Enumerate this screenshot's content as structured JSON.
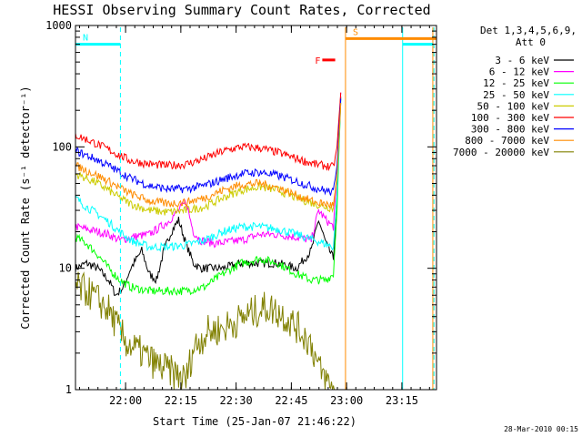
{
  "chart_data": {
    "type": "line",
    "title": "HESSI Observing Summary Count Rates, Corrected",
    "xlabel": "Start Time (25-Jan-07 21:46:22)",
    "ylabel": "Corrected Count Rate (s⁻¹ detector⁻¹)",
    "x_unit": "minutes from 21:46:22",
    "xlim": [
      0,
      98
    ],
    "ylim": [
      1,
      1000
    ],
    "y_scale": "log",
    "grid": false,
    "x_ticks": [
      {
        "x": 13.6,
        "label": "22:00"
      },
      {
        "x": 28.6,
        "label": "22:15"
      },
      {
        "x": 43.6,
        "label": "22:30"
      },
      {
        "x": 58.6,
        "label": "22:45"
      },
      {
        "x": 73.6,
        "label": "23:00"
      },
      {
        "x": 88.6,
        "label": "23:15"
      }
    ],
    "y_ticks": [
      {
        "y": 1,
        "label": "1"
      },
      {
        "y": 10,
        "label": "10"
      },
      {
        "y": 100,
        "label": "100"
      },
      {
        "y": 1000,
        "label": "1000"
      }
    ],
    "legend": {
      "placement": "right",
      "header": [
        "Det 1,3,4,5,6,9,",
        "Att 0"
      ]
    },
    "series": [
      {
        "name": "3 - 6 keV",
        "color": "#000000",
        "x": [
          0,
          3,
          6,
          9,
          11,
          13,
          15,
          18,
          20,
          22,
          24,
          26,
          28,
          30,
          32,
          34,
          36,
          40,
          45,
          50,
          55,
          60,
          64,
          66,
          68,
          70,
          71,
          72
        ],
        "y": [
          10,
          11,
          10,
          8,
          6,
          7,
          10,
          14,
          9,
          8,
          14,
          20,
          25,
          16,
          11,
          10,
          10,
          10,
          11,
          11,
          11,
          10,
          14,
          25,
          16,
          12,
          40,
          260
        ]
      },
      {
        "name": "6 - 12 keV",
        "color": "#ff00ff",
        "x": [
          0,
          3,
          6,
          9,
          12,
          15,
          20,
          25,
          28,
          30,
          32,
          34,
          38,
          45,
          50,
          55,
          60,
          64,
          66,
          68,
          70,
          71,
          72
        ],
        "y": [
          22,
          21,
          20,
          19,
          17,
          18,
          19,
          24,
          30,
          35,
          20,
          17,
          16,
          17,
          19,
          19,
          18,
          17,
          30,
          25,
          22,
          60,
          280
        ]
      },
      {
        "name": "12 - 25 keV",
        "color": "#00ff00",
        "x": [
          0,
          3,
          6,
          9,
          12,
          15,
          20,
          25,
          30,
          35,
          40,
          45,
          50,
          55,
          60,
          64,
          66,
          68,
          70,
          71,
          72
        ],
        "y": [
          18,
          16,
          13,
          10,
          8,
          7,
          6.5,
          6.5,
          6.5,
          7,
          9,
          11,
          12,
          11,
          9,
          8,
          8,
          8,
          9,
          30,
          250
        ]
      },
      {
        "name": "25 - 50 keV",
        "color": "#00ffff",
        "x": [
          0,
          3,
          6,
          9,
          12,
          15,
          20,
          25,
          30,
          35,
          40,
          45,
          50,
          55,
          60,
          65,
          70,
          71,
          72
        ],
        "y": [
          38,
          32,
          28,
          24,
          20,
          17,
          15,
          15,
          15.5,
          17,
          20,
          22,
          22,
          21,
          19,
          17,
          15,
          40,
          240
        ]
      },
      {
        "name": "50 - 100 keV",
        "color": "#cccc00",
        "x": [
          0,
          3,
          6,
          9,
          12,
          15,
          20,
          25,
          30,
          35,
          40,
          45,
          50,
          55,
          60,
          65,
          70,
          71,
          72
        ],
        "y": [
          60,
          55,
          50,
          44,
          38,
          34,
          30,
          29,
          30,
          32,
          38,
          44,
          47,
          44,
          38,
          34,
          31,
          60,
          230
        ]
      },
      {
        "name": "100 - 300 keV",
        "color": "#ff0000",
        "x": [
          0,
          3,
          6,
          9,
          12,
          15,
          20,
          25,
          30,
          35,
          40,
          45,
          50,
          55,
          60,
          65,
          70,
          71,
          72
        ],
        "y": [
          125,
          115,
          105,
          95,
          85,
          77,
          72,
          70,
          72,
          80,
          92,
          100,
          98,
          90,
          80,
          72,
          68,
          100,
          280
        ]
      },
      {
        "name": "300 - 800 keV",
        "color": "#0000ff",
        "x": [
          0,
          3,
          6,
          9,
          12,
          15,
          20,
          25,
          30,
          35,
          40,
          45,
          50,
          55,
          60,
          65,
          70,
          71,
          72
        ],
        "y": [
          93,
          85,
          78,
          70,
          62,
          55,
          48,
          45,
          45,
          48,
          54,
          60,
          62,
          58,
          52,
          46,
          42,
          70,
          250
        ]
      },
      {
        "name": "800 - 7000 keV",
        "color": "#ff8c00",
        "x": [
          0,
          3,
          6,
          9,
          12,
          15,
          20,
          25,
          30,
          35,
          40,
          45,
          50,
          55,
          60,
          65,
          70,
          71,
          72
        ],
        "y": [
          70,
          64,
          58,
          52,
          46,
          41,
          36,
          34,
          35,
          38,
          44,
          49,
          50,
          46,
          40,
          35,
          33,
          55,
          230
        ]
      },
      {
        "name": "7000 - 20000 keV",
        "color": "#808000",
        "x": [
          0,
          3,
          6,
          9,
          10,
          12,
          14,
          18,
          22,
          26,
          30,
          32,
          34,
          36,
          40,
          44,
          48,
          52,
          56,
          60,
          64,
          66,
          68,
          70,
          72
        ],
        "y": [
          7,
          6.5,
          5.5,
          4.5,
          4,
          3,
          2.4,
          2,
          1.6,
          1.4,
          1.2,
          2.2,
          2.6,
          3,
          3.2,
          3.7,
          4.3,
          4.8,
          4.2,
          3.3,
          2.4,
          1.5,
          1.2,
          1,
          1
        ]
      }
    ],
    "flag_segments": [
      {
        "label": "N",
        "color": "#00ffff",
        "y": 700,
        "start": 0,
        "end": 12.2
      },
      {
        "label": "S",
        "color": "#ff8c00",
        "y": 780,
        "start": 73.3,
        "end": 98
      },
      {
        "label": "F",
        "color": "#ff0000",
        "y": 520,
        "start": 67,
        "end": 70.5
      },
      {
        "label": "",
        "color": "#00ffff",
        "y": 700,
        "start": 88.8,
        "end": 97
      }
    ],
    "vertical_markers": [
      {
        "x": 12.2,
        "color": "#00ffff",
        "style": "dashed"
      },
      {
        "x": 73.3,
        "color": "#ff8c00",
        "style": "solid"
      },
      {
        "x": 88.8,
        "color": "#00ffff",
        "style": "solid"
      },
      {
        "x": 97,
        "color": "#ff8c00",
        "style": "solid"
      },
      {
        "x": 97.3,
        "color": "#00ffff",
        "style": "dashed"
      }
    ]
  },
  "footer": {
    "timestamp": "28-Mar-2010 00:15"
  }
}
